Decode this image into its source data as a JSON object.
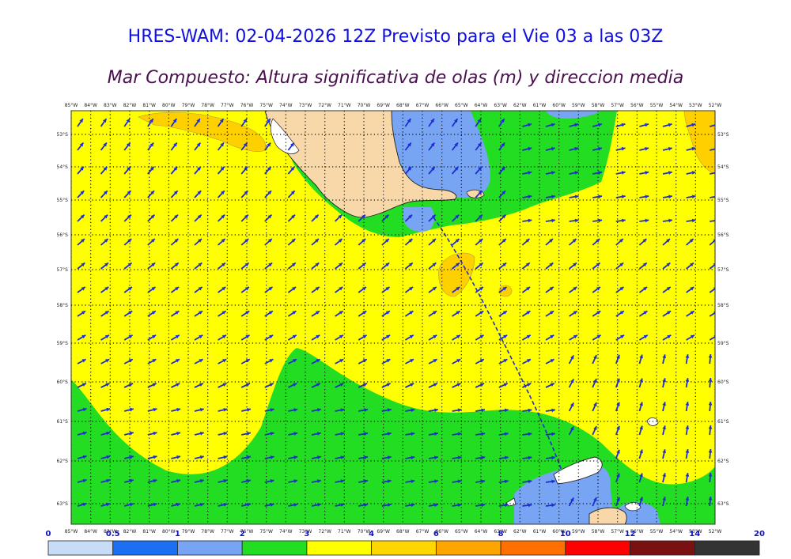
{
  "title": "HRES-WAM: 02-04-2026 12Z Previsto para el Vie 03 a las 03Z",
  "subtitle": "Mar Compuesto: Altura significativa de olas (m) y direccion media",
  "lon_labels": [
    "85°W",
    "84°W",
    "83°W",
    "82°W",
    "81°W",
    "80°W",
    "79°W",
    "78°W",
    "77°W",
    "76°W",
    "75°W",
    "74°W",
    "73°W",
    "72°W",
    "71°W",
    "70°W",
    "69°W",
    "68°W",
    "67°W",
    "66°W",
    "65°W",
    "64°W",
    "63°W",
    "62°W",
    "61°W",
    "60°W",
    "59°W",
    "58°W",
    "57°W",
    "56°W",
    "55°W",
    "54°W",
    "53°W",
    "52°W"
  ],
  "lat_labels": [
    "53°S",
    "54°S",
    "55°S",
    "56°S",
    "57°S",
    "58°S",
    "59°S",
    "60°S",
    "61°S",
    "62°S",
    "63°S"
  ],
  "colorbar": {
    "labels": [
      "0",
      "0.5",
      "1",
      "2",
      "3",
      "4",
      "6",
      "8",
      "10",
      "12",
      "14",
      "20"
    ],
    "colors": [
      "#c6dcf7",
      "#1a6ff2",
      "#78a4f4",
      "#22dd22",
      "#ffff00",
      "#ffd700",
      "#ffa500",
      "#ff7000",
      "#ff0000",
      "#7a1010",
      "#333333"
    ]
  },
  "legend_colors": {
    "sea_low": "#78a4f4",
    "sea_mid": "#22dd22",
    "sea_high": "#ffff00",
    "sea_peak": "#ffd000",
    "land": "#f8d8a8",
    "arrow": "#1c2ecf"
  }
}
